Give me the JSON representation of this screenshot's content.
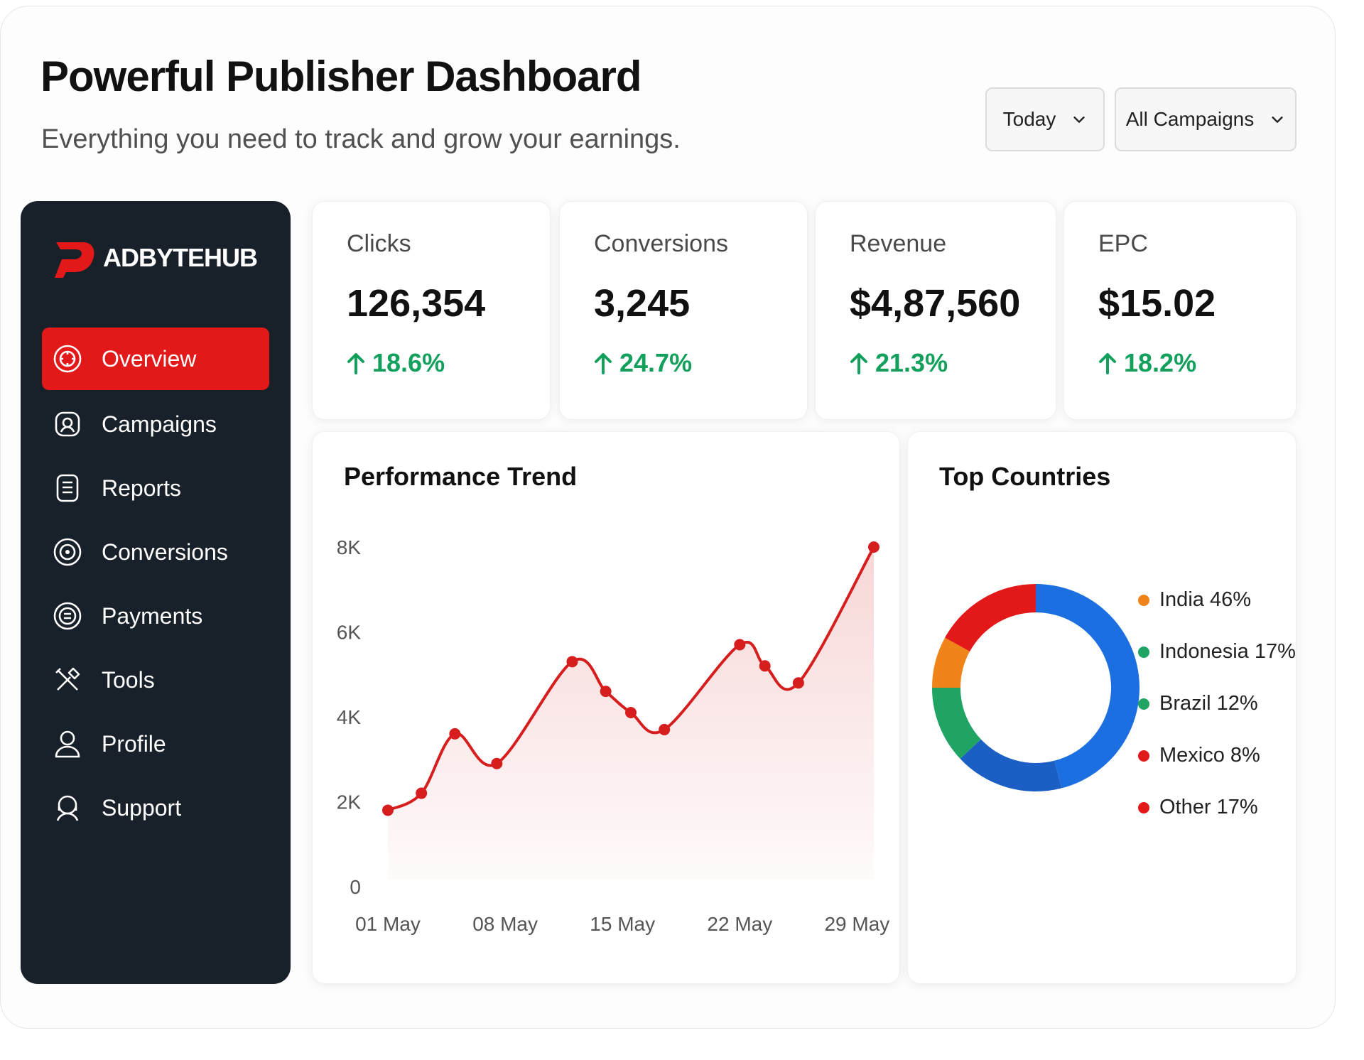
{
  "header": {
    "title": "Powerful Publisher Dashboard",
    "subtitle": "Everything you need to track and grow your earnings."
  },
  "filters": {
    "date_range": "Today",
    "campaign": "All Campaigns"
  },
  "sidebar": {
    "brand": "ADBYTEHUB",
    "brand_color": "#e31818",
    "items": [
      {
        "label": "Overview",
        "icon": "overview-icon",
        "active": true
      },
      {
        "label": "Campaigns",
        "icon": "campaigns-icon",
        "active": false
      },
      {
        "label": "Reports",
        "icon": "reports-icon",
        "active": false
      },
      {
        "label": "Conversions",
        "icon": "conversions-icon",
        "active": false
      },
      {
        "label": "Payments",
        "icon": "payments-icon",
        "active": false
      },
      {
        "label": "Tools",
        "icon": "tools-icon",
        "active": false
      },
      {
        "label": "Profile",
        "icon": "profile-icon",
        "active": false
      },
      {
        "label": "Support",
        "icon": "support-icon",
        "active": false
      }
    ]
  },
  "stats": [
    {
      "label": "Clicks",
      "value": "126,354",
      "change": "18.6%"
    },
    {
      "label": "Conversions",
      "value": "3,245",
      "change": "24.7%"
    },
    {
      "label": "Revenue",
      "value": "$4,87,560",
      "change": "21.3%"
    },
    {
      "label": "EPC",
      "value": "$15.02",
      "change": "18.2%"
    }
  ],
  "colors": {
    "positive": "#13a05c",
    "line": "#d71e1e",
    "sidebar_bg": "#18202a"
  },
  "performance": {
    "title": "Performance Trend",
    "chart_data": {
      "type": "area",
      "ylim": [
        0,
        8000
      ],
      "yticks": [
        0,
        2000,
        4000,
        6000,
        8000
      ],
      "ytick_labels": [
        "0",
        "2K",
        "4K",
        "6K",
        "8K"
      ],
      "xtick_positions": [
        1,
        8,
        15,
        22,
        29
      ],
      "xtick_labels": [
        "01 May",
        "08 May",
        "15 May",
        "22 May",
        "29 May"
      ],
      "series": [
        {
          "x": [
            1,
            3,
            5,
            7.5,
            12,
            14,
            15.5,
            17.5,
            22,
            23.5,
            25.5,
            30
          ],
          "y": [
            1800,
            2200,
            3600,
            2900,
            5300,
            4600,
            4100,
            3700,
            5700,
            5200,
            4800,
            8000
          ]
        }
      ]
    }
  },
  "countries": {
    "title": "Top Countries",
    "chart_data": {
      "type": "pie",
      "slices": [
        {
          "label": "India",
          "value": 46,
          "text": "India 46%",
          "legend_color": "#f08418",
          "ring_color": "#1c6fe0"
        },
        {
          "label": "Indonesia",
          "value": 17,
          "text": "Indonesia 17%",
          "legend_color": "#1fa463",
          "ring_color": "#1b5fc4"
        },
        {
          "label": "Brazil",
          "value": 12,
          "text": "Brazil 12%",
          "legend_color": "#1fa463",
          "ring_color": "#1fa463"
        },
        {
          "label": "Mexico",
          "value": 8,
          "text": "Mexico 8%",
          "legend_color": "#e31818",
          "ring_color": "#f08418"
        },
        {
          "label": "Other",
          "value": 17,
          "text": "Other 17%",
          "legend_color": "#e31818",
          "ring_color": "#e31818"
        }
      ]
    }
  }
}
